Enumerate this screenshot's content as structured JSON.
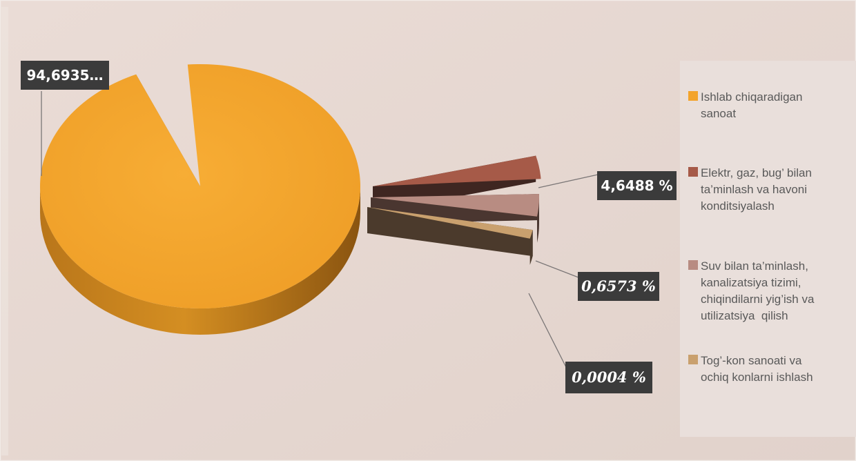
{
  "chart_data": {
    "type": "pie",
    "title": "",
    "style": "3d-exploded",
    "slices": [
      {
        "name": "Ishlab chiqaradigan sanoat",
        "value": 94.6935,
        "label": "94,6935…",
        "color": "#f3a42c"
      },
      {
        "name": "Elektr, gaz, bug’ bilan ta’minlash va havoni konditsiyalash",
        "value": 4.6488,
        "label": "4,6488 %",
        "color": "#a65a48"
      },
      {
        "name": "Suv bilan ta’minlash, kanalizatsiya tizimi, chiqindilarni yig’ish va utilizatsiya  qilish",
        "value": 0.6573,
        "label": "0,6573 %",
        "color": "#b88c82"
      },
      {
        "name": "Tog’-kon sanoati va ochiq konlarni ishlash",
        "value": 0.0004,
        "label": "0,0004 %",
        "color": "#c9a06e"
      }
    ],
    "legend": {
      "placement": "right",
      "items": [
        {
          "lines": [
            "Ishlab chiqaradigan",
            "sanoat"
          ],
          "color": "#f3a42c"
        },
        {
          "lines": [
            "Elektr, gaz, bug’ bilan",
            "ta’minlash va havoni",
            "konditsiyalash"
          ],
          "color": "#a65a48"
        },
        {
          "lines": [
            "Suv bilan ta’minlash,",
            "kanalizatsiya tizimi,",
            "chiqindilarni yig’ish va",
            "utilizatsiya  qilish"
          ],
          "color": "#b88c82"
        },
        {
          "lines": [
            "Tog’-kon sanoati va",
            "ochiq konlarni ishlash"
          ],
          "color": "#c9a06e"
        }
      ]
    }
  }
}
